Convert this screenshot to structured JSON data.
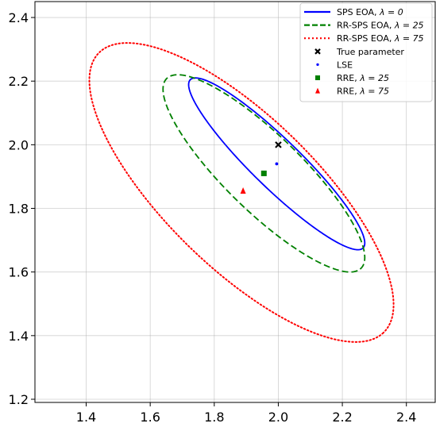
{
  "chart_data": {
    "type": "scatter",
    "xlim": [
      1.24,
      2.49
    ],
    "ylim": [
      1.19,
      2.45
    ],
    "xticks": [
      1.4,
      1.6,
      1.8,
      2.0,
      2.2,
      2.4
    ],
    "yticks": [
      1.2,
      1.4,
      1.6,
      1.8,
      2.0,
      2.2,
      2.4
    ],
    "xtick_labels": [
      "1.4",
      "1.6",
      "1.8",
      "2.0",
      "2.2",
      "2.4"
    ],
    "ytick_labels": [
      "1.2",
      "1.4",
      "1.6",
      "1.8",
      "2.0",
      "2.2",
      "2.4"
    ],
    "grid": true,
    "legend_position": "top-right",
    "ellipses": [
      {
        "name": "SPS EOA, λ = 0",
        "legend_main": "SPS EOA, ",
        "legend_math": "λ = 0",
        "color": "#0000ff",
        "style": "solid",
        "center": [
          2.01,
          1.94
        ],
        "x_range": [
          1.72,
          2.27
        ],
        "y_range": [
          1.67,
          2.21
        ],
        "angle_deg": -48.5,
        "semi_major": 0.4,
        "semi_minor": 0.08
      },
      {
        "name": "RR-SPS EOA, λ = 25",
        "legend_main": "RR-SPS EOA, ",
        "legend_math": "λ = 25",
        "color": "#008000",
        "style": "dashed",
        "center": [
          1.98,
          1.91
        ],
        "x_range": [
          1.64,
          2.27
        ],
        "y_range": [
          1.6,
          2.22
        ],
        "angle_deg": -48.5,
        "semi_major": 0.43,
        "semi_minor": 0.12
      },
      {
        "name": "RR-SPS EOA, λ = 75",
        "legend_main": "RR-SPS EOA, ",
        "legend_math": "λ = 75",
        "color": "#ff0000",
        "style": "dotted",
        "center": [
          1.885,
          1.85
        ],
        "x_range": [
          1.41,
          2.36
        ],
        "y_range": [
          1.38,
          2.32
        ],
        "angle_deg": -46.5,
        "semi_major": 0.61,
        "semi_minor": 0.23
      }
    ],
    "points": [
      {
        "name": "True parameter",
        "legend_main": "True parameter",
        "legend_math": "",
        "marker": "x",
        "color": "#000000",
        "x": 2.0,
        "y": 2.0
      },
      {
        "name": "LSE",
        "legend_main": "LSE",
        "legend_math": "",
        "marker": "dot",
        "color": "#0000ff",
        "x": 1.995,
        "y": 1.94
      },
      {
        "name": "RRE, λ = 25",
        "legend_main": "RRE, ",
        "legend_math": "λ = 25",
        "marker": "square",
        "color": "#008000",
        "x": 1.955,
        "y": 1.91
      },
      {
        "name": "RRE, λ = 75",
        "legend_main": "RRE, ",
        "legend_math": "λ = 75",
        "marker": "triangle",
        "color": "#ff0000",
        "x": 1.89,
        "y": 1.855
      }
    ]
  }
}
